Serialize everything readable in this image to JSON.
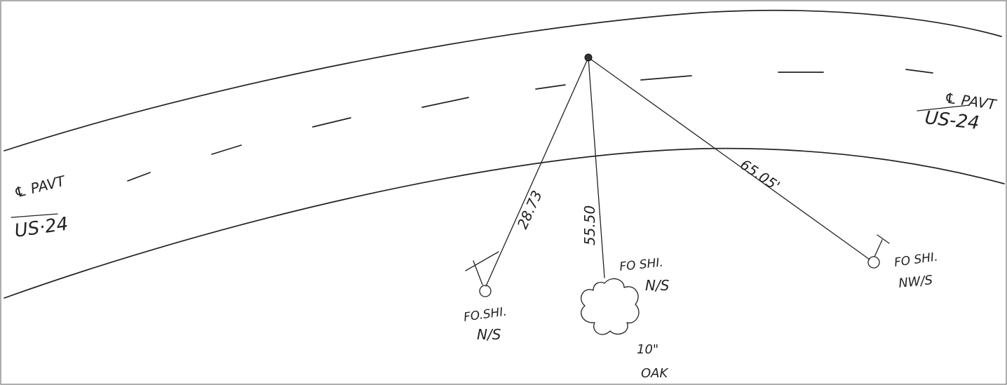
{
  "labels": {
    "cl_left_top": "℄ PAVT",
    "cl_left_bottom": "US·24",
    "cl_right_top": "℄ PAVT",
    "cl_right_bottom": "US-24",
    "dist_left": "28.73",
    "dist_mid": "55.50",
    "dist_right": "65.05'",
    "marker_left_1": "FO.SHI.",
    "marker_left_2": "N/S",
    "marker_mid_1": "FO SHI.",
    "marker_mid_2": "N/S",
    "marker_right_1": "FO SHI.",
    "marker_right_2": "NW/S",
    "tree_1": "10\"",
    "tree_2": "OAK"
  }
}
